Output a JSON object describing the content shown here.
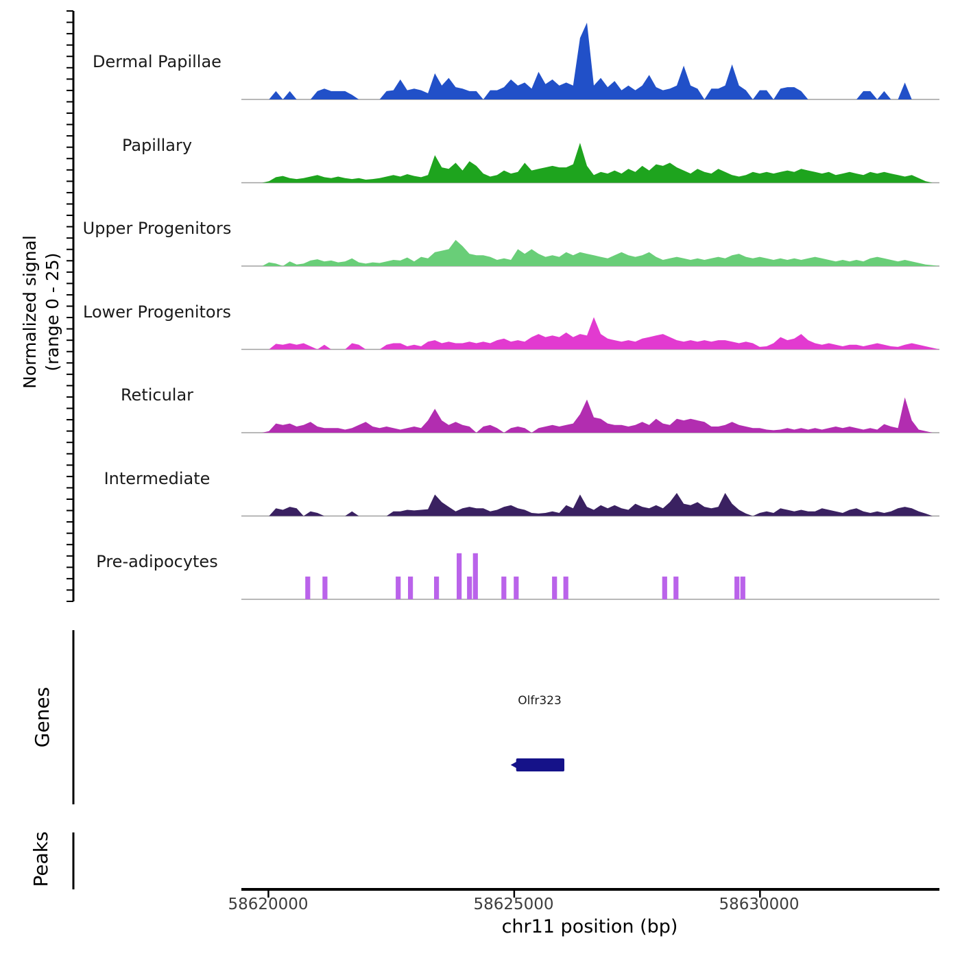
{
  "figure": {
    "ylabel_line1": "Normalized signal",
    "ylabel_line2": "(range 0 - 25)",
    "genes_section_label": "Genes",
    "peaks_section_label": "Peaks"
  },
  "chart_data": {
    "type": "area",
    "title": "",
    "region": {
      "chrom": "chr11",
      "start_bp": 58619450,
      "end_bp": 58633650
    },
    "xlabel": "chr11 position (bp)",
    "ylabel": "Normalized signal (range 0 - 25)",
    "ylim": [
      0,
      25
    ],
    "grid": false,
    "xticks": [
      58620000,
      58625000,
      58630000
    ],
    "xtick_labels": [
      "58620000",
      "58625000",
      "58630000"
    ],
    "baseline_color": "#a0a0a0",
    "axis_color": "#000000",
    "tick_label_color": "#3d3d3d",
    "tracks": [
      {
        "name": "Dermal Papillae",
        "color": "#2150c8",
        "style": "area",
        "values": [
          0,
          0,
          0,
          0,
          0,
          2.7,
          0,
          2.7,
          0,
          0,
          0,
          2.7,
          3.5,
          2.7,
          2.7,
          2.7,
          1.5,
          0,
          0,
          0,
          0,
          2.7,
          3,
          6.5,
          3,
          3.5,
          3,
          2,
          8.5,
          4.5,
          7,
          4,
          3.5,
          2.7,
          2.7,
          0,
          3,
          3,
          4,
          6.5,
          4.5,
          5.5,
          3.5,
          9,
          5,
          6.5,
          4.5,
          5.5,
          4.5,
          20,
          25,
          4.5,
          7,
          4,
          6,
          3,
          4.5,
          3,
          4.5,
          8,
          4,
          3,
          3.5,
          4.5,
          11,
          4.5,
          3.5,
          0,
          3.5,
          3.5,
          4.5,
          11.4,
          4.5,
          3,
          0,
          3,
          3,
          0,
          3.5,
          4,
          4,
          2.7,
          0,
          0,
          0,
          0,
          0,
          0,
          0,
          0,
          2.7,
          2.7,
          0,
          2.7,
          0,
          0,
          5.5,
          0,
          0,
          0,
          0,
          0
        ]
      },
      {
        "name": "Papillary",
        "color": "#1ea41e",
        "style": "area",
        "values": [
          0,
          0,
          0,
          0,
          0.5,
          1.8,
          2.2,
          1.5,
          1.2,
          1.5,
          2,
          2.5,
          1.8,
          1.5,
          2,
          1.5,
          1.2,
          1.5,
          1,
          1.2,
          1.5,
          2,
          2.5,
          2,
          2.8,
          2.2,
          1.8,
          2.5,
          9,
          5,
          4.5,
          6.5,
          4,
          7,
          5.5,
          3,
          2,
          2.5,
          4,
          3,
          3.5,
          6.5,
          4,
          4.5,
          5,
          5.5,
          5,
          5,
          6,
          13,
          5.5,
          2.5,
          3.5,
          3,
          4,
          3,
          4.5,
          3.5,
          5.5,
          4,
          6,
          5.5,
          6.5,
          5,
          4,
          3,
          4.5,
          3.5,
          3,
          4.5,
          3.5,
          2.5,
          2,
          2.5,
          3.5,
          3,
          3.5,
          3,
          3.5,
          4,
          3.5,
          4.5,
          4,
          3.5,
          3,
          3.5,
          2.5,
          3,
          3.5,
          3,
          2.5,
          3.5,
          3,
          3.5,
          3,
          2.5,
          2,
          2.5,
          1.5,
          0.5,
          0,
          0
        ]
      },
      {
        "name": "Upper Progenitors",
        "color": "#69ce78",
        "style": "area",
        "values": [
          0,
          0,
          0,
          0,
          1.2,
          0.8,
          0,
          1.5,
          0.5,
          0.8,
          1.8,
          2.2,
          1.5,
          1.8,
          1.2,
          1.5,
          2.5,
          1.2,
          0.8,
          1.2,
          1,
          1.5,
          2,
          1.8,
          2.8,
          1.5,
          3,
          2.5,
          4.5,
          5,
          5.5,
          8.5,
          6.5,
          4,
          3.5,
          3.5,
          3,
          2,
          2.5,
          2,
          5.5,
          4,
          5.5,
          4,
          3,
          3.5,
          3,
          4.5,
          3.5,
          4.5,
          4,
          3.5,
          3,
          2.5,
          3.5,
          4.5,
          3.5,
          3,
          3.5,
          4.5,
          3,
          2,
          2.5,
          3,
          2.5,
          2,
          2.5,
          2,
          2.5,
          3,
          2.5,
          3.5,
          4,
          3,
          2.5,
          3,
          2.5,
          2,
          2.5,
          2,
          2.5,
          2,
          2.5,
          3,
          2.5,
          2,
          1.5,
          2,
          1.5,
          2,
          1.5,
          2.5,
          3,
          2.5,
          2,
          1.5,
          2,
          1.5,
          1,
          0.5,
          0.3,
          0
        ]
      },
      {
        "name": "Lower Progenitors",
        "color": "#e23ad0",
        "style": "area",
        "values": [
          0,
          0,
          0,
          0,
          0,
          1.8,
          1.5,
          2,
          1.5,
          2,
          1,
          0,
          1.5,
          0,
          0,
          0,
          2,
          1.5,
          0,
          0,
          0,
          1.5,
          2,
          2,
          1,
          1.5,
          1,
          2.5,
          3,
          2,
          2.5,
          2,
          2,
          2.5,
          2,
          2.5,
          2,
          3,
          3.5,
          2.5,
          3,
          2.5,
          4,
          5,
          4,
          4.5,
          4,
          5.5,
          4,
          5,
          4.5,
          10.5,
          5,
          3.5,
          3,
          2.5,
          3,
          2.5,
          3.5,
          4,
          4.5,
          5,
          4,
          3,
          2.5,
          3,
          2.5,
          3,
          2.5,
          3,
          3,
          2.5,
          2,
          2.5,
          2,
          0.8,
          1,
          2,
          4,
          3,
          3.5,
          5,
          3,
          2,
          1.5,
          2,
          1.5,
          1,
          1.5,
          1.5,
          1,
          1.5,
          2,
          1.5,
          1,
          0.8,
          1.5,
          2,
          1.5,
          1,
          0.5,
          0
        ]
      },
      {
        "name": "Reticular",
        "color": "#b22db0",
        "style": "area",
        "values": [
          0,
          0,
          0,
          0,
          0.5,
          3,
          2.5,
          3,
          2,
          2.5,
          3.5,
          2,
          1.5,
          1.5,
          1.5,
          1,
          1.5,
          2.5,
          3.5,
          2,
          1.5,
          2,
          1.5,
          1,
          1.5,
          2,
          1.5,
          4,
          7.8,
          4,
          2.5,
          3.5,
          2.5,
          2,
          0,
          2,
          2.5,
          1.5,
          0,
          1.5,
          2,
          1.5,
          0,
          1.5,
          2,
          2.5,
          2,
          2.5,
          3,
          6,
          10.8,
          5,
          4.5,
          3,
          2.5,
          2.5,
          2,
          2.5,
          3.5,
          2.5,
          4.5,
          3,
          2.5,
          4.5,
          4,
          4.5,
          4,
          3.5,
          2,
          2,
          2.5,
          3.5,
          2.5,
          2,
          1.5,
          1.5,
          1,
          0.8,
          1,
          1.5,
          1,
          1.5,
          1,
          1.5,
          1,
          1.5,
          2,
          1.5,
          2,
          1.5,
          1,
          1.5,
          1,
          2.8,
          2,
          1.5,
          11.5,
          4,
          1,
          0.5,
          0,
          0
        ]
      },
      {
        "name": "Intermediate",
        "color": "#3a2161",
        "style": "area",
        "values": [
          0,
          0,
          0,
          0,
          0,
          2.5,
          2,
          3,
          2.5,
          0,
          1.5,
          1,
          0,
          0,
          0,
          0,
          1.5,
          0,
          0,
          0,
          0,
          0,
          1.5,
          1.5,
          2,
          1.8,
          2,
          2.2,
          7,
          4.5,
          3,
          1.5,
          2.5,
          3,
          2.5,
          2.5,
          1.5,
          2,
          3,
          3.5,
          2.5,
          2,
          1,
          0.8,
          1,
          1.5,
          1,
          3.5,
          2.5,
          7,
          3,
          2,
          3.5,
          2.5,
          3.5,
          2.5,
          2,
          4,
          3,
          2.5,
          3.5,
          2.5,
          4.5,
          7.5,
          4,
          3.5,
          4.5,
          3,
          2.5,
          3,
          7.5,
          4,
          2,
          0.8,
          0,
          1,
          1.5,
          1,
          2.5,
          2,
          1.5,
          2,
          1.5,
          1.5,
          2.5,
          2,
          1.5,
          1,
          2,
          2.5,
          1.5,
          1,
          1.5,
          1,
          1.5,
          2.5,
          3,
          2.5,
          1.5,
          0.8,
          0,
          0
        ]
      },
      {
        "name": "Pre-adipocytes",
        "color": "#ba63ea",
        "style": "bars",
        "bar_width_bp": 100,
        "bars": [
          [
            58620800,
            7.4
          ],
          [
            58621150,
            7.4
          ],
          [
            58622640,
            7.4
          ],
          [
            58622890,
            7.4
          ],
          [
            58623420,
            7.4
          ],
          [
            58623880,
            15
          ],
          [
            58624090,
            7.4
          ],
          [
            58624210,
            15
          ],
          [
            58624790,
            7.4
          ],
          [
            58625040,
            7.4
          ],
          [
            58625820,
            7.4
          ],
          [
            58626050,
            7.4
          ],
          [
            58628060,
            7.4
          ],
          [
            58628290,
            7.4
          ],
          [
            58629530,
            7.4
          ],
          [
            58629650,
            7.4
          ]
        ]
      }
    ],
    "genes": [
      {
        "name": "Olfr323",
        "start_bp": 58625040,
        "end_bp": 58626020,
        "strand": "-",
        "color": "#151289"
      }
    ],
    "peaks": []
  }
}
